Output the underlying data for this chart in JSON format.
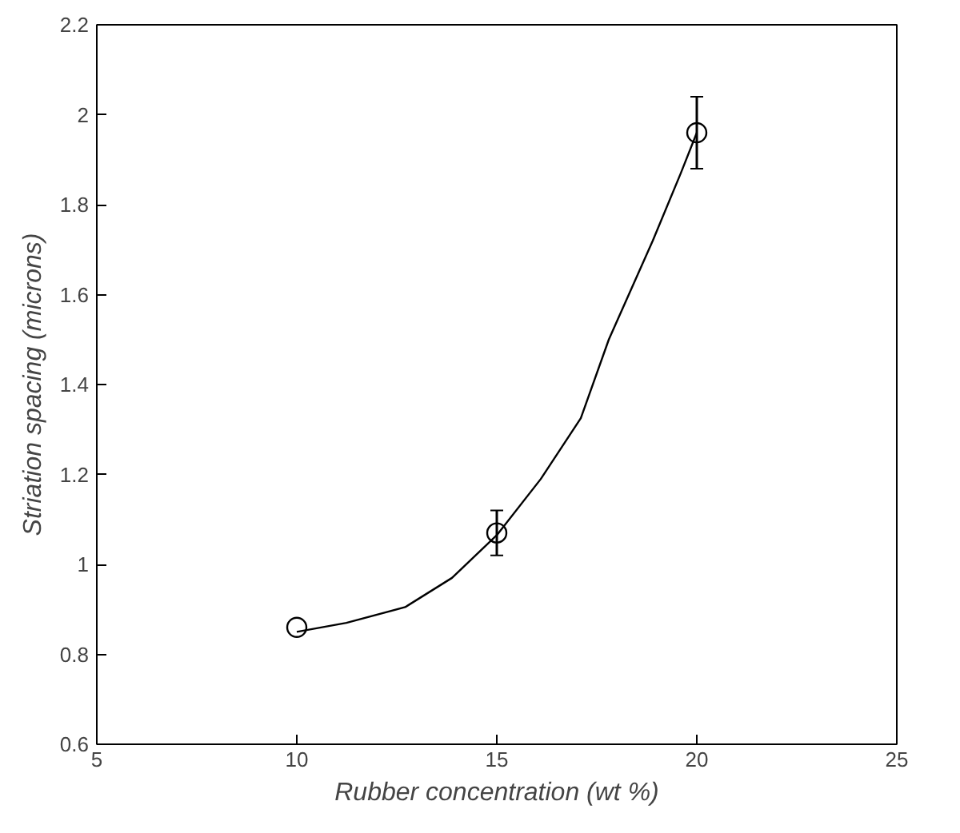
{
  "chart_data": {
    "type": "scatter",
    "xlabel": "Rubber concentration (wt %)",
    "ylabel": "Striation spacing (microns)",
    "xlim": [
      5,
      25
    ],
    "ylim": [
      0.6,
      2.2
    ],
    "xticks": [
      5,
      10,
      15,
      20,
      25
    ],
    "yticks": [
      {
        "value": 0.6,
        "label": "0.6"
      },
      {
        "value": 0.8,
        "label": "0.8"
      },
      1,
      {
        "value": 1.2,
        "label": "1.2"
      },
      {
        "value": 1.4,
        "label": "1.4"
      },
      {
        "value": 1.6,
        "label": "1.6"
      },
      {
        "value": 1.8,
        "label": "1.8"
      },
      2,
      {
        "value": 2.2,
        "label": "2.2"
      }
    ],
    "grid": false,
    "series": [
      {
        "color": "#000000",
        "marker": "circle",
        "x": [
          10,
          15,
          20
        ],
        "values": [
          0.86,
          1.07,
          1.96
        ],
        "errors": [
          null,
          [
            1.02,
            1.12
          ],
          [
            1.88,
            2.04
          ]
        ]
      },
      {
        "type": "line",
        "color": "#000000",
        "line_style": "solid",
        "x": [
          10,
          11.24,
          12.71,
          13.88,
          15,
          16.1,
          17.1,
          17.8,
          18.9,
          19.6,
          20
        ],
        "values": [
          0.85,
          0.87,
          0.905,
          0.97,
          1.065,
          1.19,
          1.325,
          1.5,
          1.72,
          1.87,
          1.96
        ]
      }
    ]
  }
}
